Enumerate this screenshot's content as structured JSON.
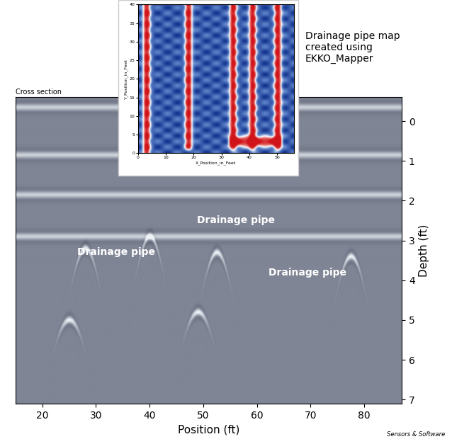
{
  "chart_data": [
    {
      "type": "radargram",
      "title": "Cross section",
      "xlabel": "Position (ft)",
      "ylabel": "Depth (ft)",
      "xlim": [
        15,
        87
      ],
      "xticks": [
        20,
        30,
        40,
        50,
        60,
        70,
        80
      ],
      "ylim": [
        7.1,
        -0.6
      ],
      "yticks": [
        0,
        1,
        2,
        3,
        4,
        5,
        6,
        7
      ],
      "reflectors": [
        -0.35,
        0.85,
        1.85,
        2.9
      ],
      "pipes": [
        {
          "x": 28,
          "depth": 3.2
        },
        {
          "x": 52.5,
          "depth": 3.3
        },
        {
          "x": 77.5,
          "depth": 3.4
        },
        {
          "x": 25,
          "depth": 5.0
        },
        {
          "x": 49,
          "depth": 4.8
        },
        {
          "x": 40,
          "depth": 2.9
        }
      ],
      "annotations": [
        {
          "text": "Drainage pipe",
          "x": 26.5,
          "y": 3.3
        },
        {
          "text": "Drainage pipe",
          "x": 48.8,
          "y": 2.5
        },
        {
          "text": "Drainage pipe",
          "x": 62.1,
          "y": 3.8
        }
      ]
    },
    {
      "type": "map",
      "title": "Drainage pipe map\ncreated using\nEKKO_Mapper",
      "xlabel": "X_Position_in_Feet",
      "ylabel": "Y_Position_in_Feet",
      "xlim": [
        0,
        56
      ],
      "xticks": [
        0,
        10,
        20,
        30,
        40,
        50
      ],
      "ylim": [
        0,
        40
      ],
      "yticks": [
        0,
        5,
        10,
        15,
        20,
        25,
        30,
        35,
        40
      ],
      "pipes": [
        {
          "x": [
            3,
            3
          ],
          "y": [
            0,
            40
          ]
        },
        {
          "x": [
            18,
            18
          ],
          "y": [
            2,
            40
          ]
        },
        {
          "x": [
            34,
            34
          ],
          "y": [
            2,
            40
          ]
        },
        {
          "x": [
            41,
            41
          ],
          "y": [
            2,
            40
          ]
        },
        {
          "x": [
            50,
            50
          ],
          "y": [
            2,
            40
          ]
        },
        {
          "x": [
            34,
            50
          ],
          "y": [
            3,
            3
          ]
        }
      ]
    }
  ],
  "credit": "Sensors & Software"
}
